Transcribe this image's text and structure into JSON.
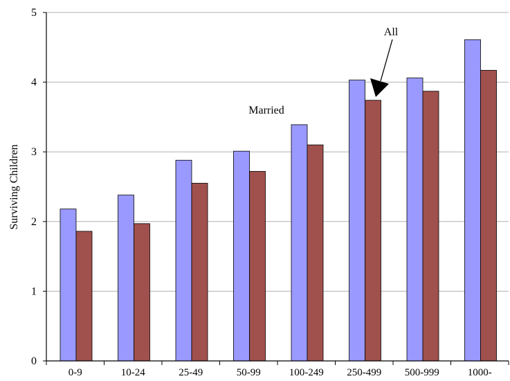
{
  "chart_data": {
    "type": "bar",
    "title": "",
    "xlabel": "",
    "ylabel": "Surviving Children",
    "categories": [
      "0-9",
      "10-24",
      "25-49",
      "50-99",
      "100-249",
      "250-499",
      "500-999",
      "1000-"
    ],
    "series": [
      {
        "name": "Married",
        "color": "#9999ff",
        "values": [
          2.18,
          2.38,
          2.88,
          3.01,
          3.39,
          4.03,
          4.06,
          4.61
        ]
      },
      {
        "name": "All",
        "color": "#a0504d",
        "values": [
          1.86,
          1.97,
          2.55,
          2.72,
          3.1,
          3.74,
          3.87,
          4.17
        ]
      }
    ],
    "ylim": [
      0,
      5
    ],
    "yticks": [
      0,
      1,
      2,
      3,
      4,
      5
    ],
    "grid": true,
    "legend": "none",
    "annotations": [
      {
        "text": "Married",
        "series": "Married"
      },
      {
        "text": "All",
        "series": "All",
        "arrow": true
      }
    ]
  }
}
